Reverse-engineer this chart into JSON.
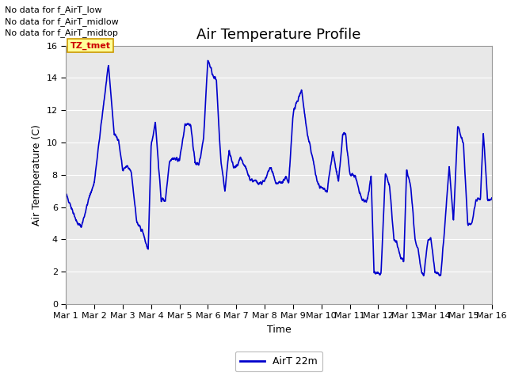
{
  "title": "Air Temperature Profile",
  "xlabel": "Time",
  "ylabel": "Air Termperature (C)",
  "ylim": [
    0,
    16
  ],
  "yticks": [
    0,
    2,
    4,
    6,
    8,
    10,
    12,
    14,
    16
  ],
  "line_color": "#0000cc",
  "line_width": 1.2,
  "background_color": "#e8e8e8",
  "annotations_above": [
    "No data for f_AirT_low",
    "No data for f_AirT_midlow",
    "No data for f_AirT_midtop"
  ],
  "annotation_color": "#000000",
  "tmet_label": "TZ_tmet",
  "tmet_color": "#cc0000",
  "tmet_bg": "#ffff99",
  "legend_label": "AirT 22m",
  "x_tick_labels": [
    "Mar 1",
    "Mar 2",
    "Mar 3",
    "Mar 4",
    "Mar 5",
    "Mar 6",
    "Mar 7",
    "Mar 8",
    "Mar 9",
    "Mar 10",
    "Mar 11",
    "Mar 12",
    "Mar 13",
    "Mar 14",
    "Mar 15",
    "Mar 16"
  ],
  "n_days": 15,
  "pts_per_day": 144,
  "title_fontsize": 13,
  "label_fontsize": 9,
  "tick_fontsize": 8,
  "annot_fontsize": 8
}
